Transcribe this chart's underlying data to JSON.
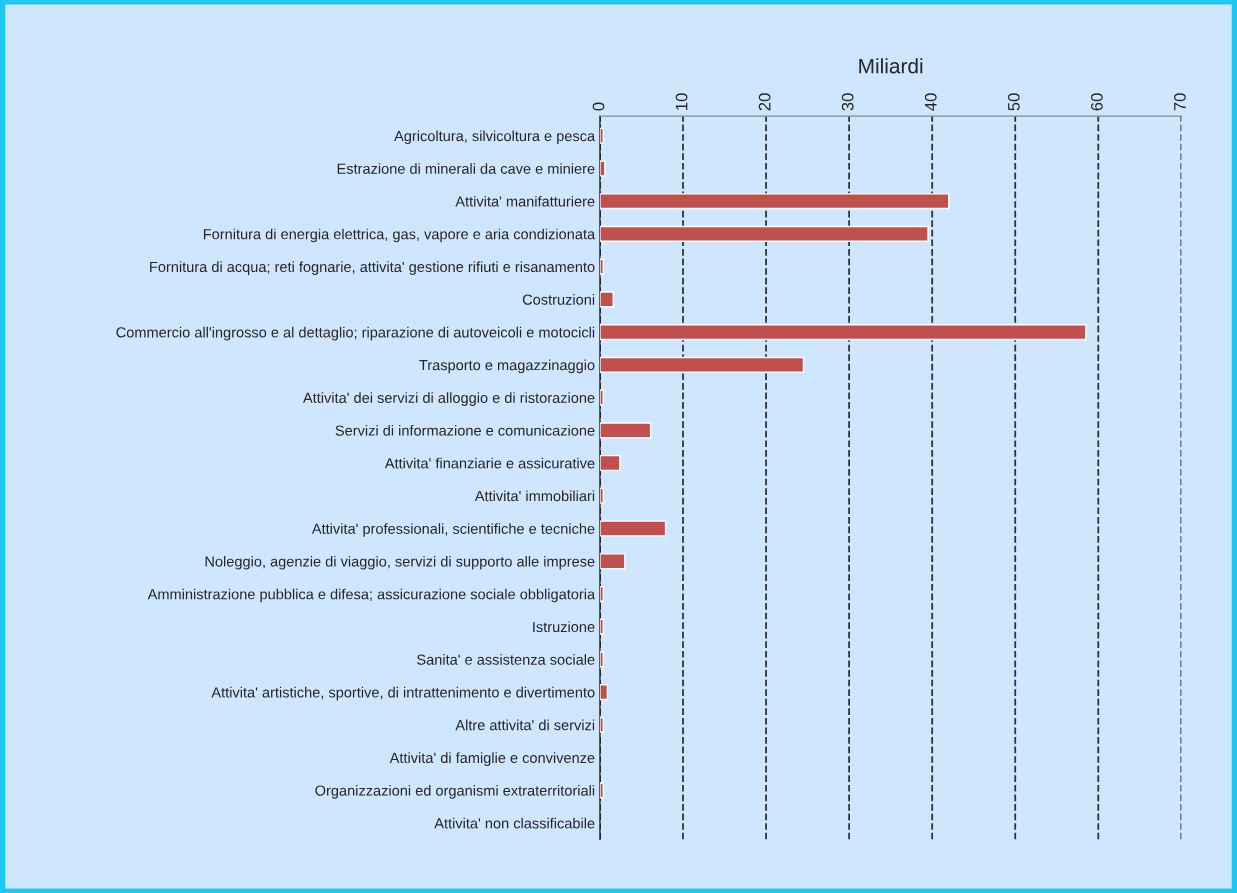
{
  "chart_data": {
    "type": "bar",
    "orientation": "horizontal",
    "xlabel": "Miliardi",
    "categories": [
      "Agricoltura, silvicoltura e pesca",
      "Estrazione di minerali da cave e miniere",
      "Attivita' manifatturiere",
      "Fornitura di energia elettrica, gas, vapore e aria condizionata",
      "Fornitura di acqua; reti fognarie, attivita' gestione rifiuti e risanamento",
      "Costruzioni",
      "Commercio all'ingrosso e al dettaglio; riparazione di autoveicoli e motocicli",
      "Trasporto e magazzinaggio",
      "Attivita' dei servizi di alloggio e di ristorazione",
      "Servizi di informazione e comunicazione",
      "Attivita' finanziarie e assicurative",
      "Attivita' immobiliari",
      "Attivita' professionali, scientifiche e tecniche",
      "Noleggio, agenzie di viaggio, servizi di supporto alle imprese",
      "Amministrazione pubblica e difesa; assicurazione sociale obbligatoria",
      "Istruzione",
      "Sanita' e assistenza sociale",
      "Attivita' artistiche, sportive, di intrattenimento e divertimento",
      "Altre attivita' di servizi",
      "Attivita' di famiglie e convivenze",
      "Organizzazioni ed organismi extraterritoriali",
      "Attivita' non classificabile"
    ],
    "values": [
      0.4,
      0.6,
      42,
      39.5,
      0.4,
      1.6,
      58.5,
      24.5,
      0.4,
      6.1,
      2.4,
      0.4,
      7.9,
      3.0,
      0.4,
      0.4,
      0.4,
      0.9,
      0.4,
      null,
      0.4,
      null
    ],
    "color": "#c0504d",
    "xlim": [
      0,
      70
    ],
    "xticks": [
      0,
      10,
      20,
      30,
      40,
      50,
      60,
      70
    ],
    "grid": "x",
    "line_style": "dashed"
  }
}
